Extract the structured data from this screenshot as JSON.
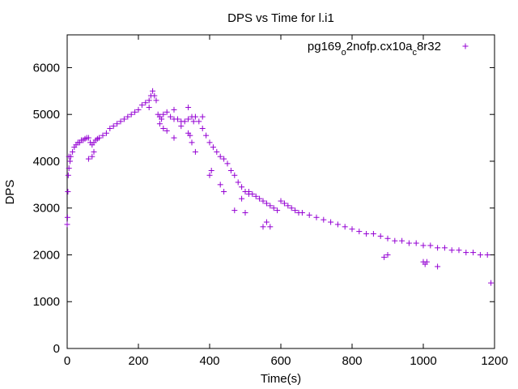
{
  "chart_data": {
    "type": "scatter",
    "title": "DPS vs Time for l.i1",
    "xlabel": "Time(s)",
    "ylabel": "DPS",
    "xlim": [
      0,
      1200
    ],
    "ylim": [
      0,
      6700
    ],
    "xticks": [
      0,
      200,
      400,
      600,
      800,
      1000,
      1200
    ],
    "yticks": [
      0,
      1000,
      2000,
      3000,
      4000,
      5000,
      6000
    ],
    "grid": false,
    "legend_position": "top-right",
    "marker": "+",
    "series": [
      {
        "name": "pg169_o2nofp.cx10a_c8r32",
        "legend_parts": [
          {
            "text": "pg169",
            "sub": false
          },
          {
            "text": "o",
            "sub": true
          },
          {
            "text": "2nofp.cx10a",
            "sub": false
          },
          {
            "text": "c",
            "sub": true
          },
          {
            "text": "8r32",
            "sub": false
          }
        ],
        "color": "#9400d3",
        "x": [
          0,
          1,
          2,
          3,
          5,
          8,
          10,
          15,
          20,
          25,
          30,
          35,
          40,
          45,
          50,
          55,
          60,
          65,
          70,
          75,
          80,
          85,
          90,
          100,
          110,
          120,
          130,
          140,
          150,
          160,
          170,
          180,
          190,
          200,
          210,
          220,
          230,
          235,
          240,
          245,
          250,
          255,
          260,
          265,
          270,
          280,
          290,
          300,
          310,
          320,
          330,
          340,
          350,
          355,
          360,
          370,
          380,
          390,
          400,
          410,
          420,
          430,
          440,
          450,
          460,
          470,
          480,
          490,
          500,
          510,
          520,
          530,
          540,
          550,
          560,
          570,
          580,
          590,
          600,
          610,
          620,
          630,
          640,
          650,
          660,
          680,
          700,
          720,
          740,
          760,
          780,
          800,
          820,
          840,
          860,
          880,
          900,
          920,
          940,
          960,
          980,
          1000,
          1020,
          1040,
          1060,
          1080,
          1100,
          1120,
          1140,
          1160,
          1180,
          1190,
          60,
          70,
          75,
          230,
          260,
          270,
          280,
          300,
          320,
          340,
          345,
          350,
          360,
          400,
          405,
          430,
          440,
          490,
          500,
          550,
          560,
          570,
          890,
          900,
          1000,
          1005,
          1010,
          1040,
          5,
          300,
          340,
          380,
          470,
          510
        ],
        "y": [
          2650,
          2800,
          3350,
          3700,
          3850,
          4000,
          4100,
          4200,
          4300,
          4350,
          4400,
          4400,
          4450,
          4450,
          4480,
          4500,
          4500,
          4400,
          4350,
          4400,
          4450,
          4480,
          4500,
          4550,
          4600,
          4700,
          4750,
          4800,
          4850,
          4900,
          4950,
          5000,
          5050,
          5100,
          5200,
          5250,
          5300,
          5400,
          5500,
          5400,
          5300,
          5000,
          4950,
          4900,
          5000,
          5050,
          4950,
          4900,
          4900,
          4850,
          4850,
          4900,
          4950,
          4850,
          4950,
          4850,
          4700,
          4550,
          4400,
          4300,
          4200,
          4100,
          4050,
          3950,
          3800,
          3700,
          3550,
          3450,
          3350,
          3300,
          3300,
          3250,
          3200,
          3150,
          3100,
          3050,
          3000,
          2950,
          3150,
          3100,
          3050,
          3000,
          2950,
          2900,
          2900,
          2850,
          2800,
          2750,
          2700,
          2650,
          2600,
          2550,
          2500,
          2450,
          2450,
          2400,
          2350,
          2300,
          2300,
          2250,
          2250,
          2200,
          2200,
          2150,
          2150,
          2100,
          2100,
          2050,
          2050,
          2000,
          2000,
          1400,
          4050,
          4100,
          4200,
          5150,
          4800,
          4700,
          4650,
          4500,
          4750,
          4600,
          4550,
          4400,
          4200,
          3700,
          3800,
          3500,
          3350,
          3200,
          2900,
          2600,
          2700,
          2600,
          1950,
          2000,
          1850,
          1800,
          1850,
          1750,
          4100,
          5100,
          5150,
          4950,
          2950,
          3350
        ]
      }
    ]
  }
}
